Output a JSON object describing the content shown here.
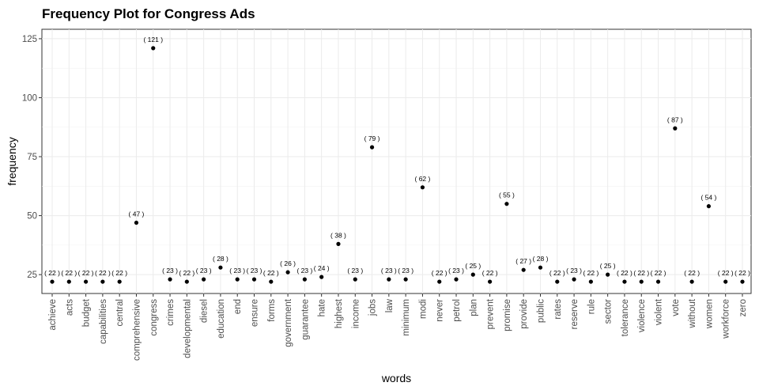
{
  "chart_data": {
    "type": "scatter",
    "title": "Frequency Plot for Congress Ads",
    "xlabel": "words",
    "ylabel": "frequency",
    "ylim": [
      17,
      129
    ],
    "yticks": [
      25,
      50,
      75,
      100,
      125
    ],
    "grid": true,
    "label_format": "( {v} )",
    "categories": [
      "achieve",
      "acts",
      "budget",
      "capabilities",
      "central",
      "comprehensive",
      "congress",
      "crimes",
      "developmental",
      "diesel",
      "education",
      "end",
      "ensure",
      "forms",
      "government",
      "guarantee",
      "hate",
      "highest",
      "income",
      "jobs",
      "law",
      "minimum",
      "modi",
      "never",
      "petrol",
      "plan",
      "prevent",
      "promise",
      "provide",
      "public",
      "rates",
      "reserve",
      "rule",
      "sector",
      "tolerance",
      "violence",
      "violent",
      "vote",
      "without",
      "women",
      "workforce",
      "zero"
    ],
    "values": [
      22,
      22,
      22,
      22,
      22,
      47,
      121,
      23,
      22,
      23,
      28,
      23,
      23,
      22,
      26,
      23,
      24,
      38,
      23,
      79,
      23,
      23,
      62,
      22,
      23,
      25,
      22,
      55,
      27,
      28,
      22,
      23,
      22,
      25,
      22,
      22,
      22,
      87,
      22,
      54,
      22,
      22
    ]
  }
}
